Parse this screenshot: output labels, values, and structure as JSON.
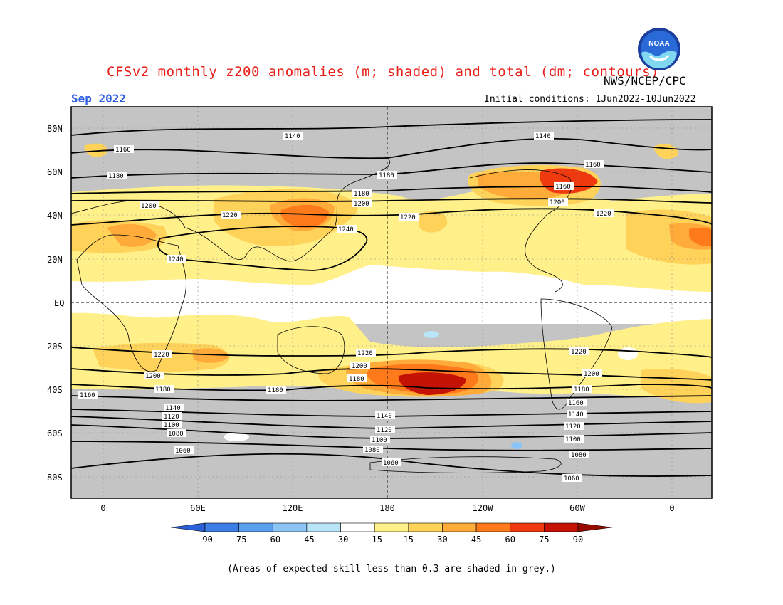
{
  "header": {
    "title": "CFSv2 monthly z200 anomalies (m; shaded) and total (dm; contours)",
    "org": "NWS/NCEP/CPC",
    "month": "Sep 2022",
    "initial_conditions": "Initial conditions: 1Jun2022-10Jun2022",
    "logo_text": "NOAA"
  },
  "footer_note": "(Areas of expected skill less than 0.3 are shaded in grey.)",
  "axes": {
    "lat_labels": [
      "80N",
      "60N",
      "40N",
      "20N",
      "EQ",
      "20S",
      "40S",
      "60S",
      "80S"
    ],
    "lon_labels": [
      "0",
      "60E",
      "120E",
      "180",
      "120W",
      "60W",
      "0"
    ]
  },
  "colorbar": {
    "ticks": [
      "-90",
      "-75",
      "-60",
      "-45",
      "-30",
      "-15",
      "15",
      "30",
      "45",
      "60",
      "75",
      "90"
    ],
    "colors": [
      "#2a5fd8",
      "#3a7ee6",
      "#5aa0ef",
      "#8cc4f5",
      "#b8e6f8",
      "#ffffff",
      "#fff08a",
      "#ffd35a",
      "#ffab3a",
      "#ff7a1a",
      "#ef3a10",
      "#c41205",
      "#960a00"
    ]
  },
  "anomaly_colors": {
    "grey": "#c4c4c4",
    "c15": "#fff08a",
    "c30": "#ffd35a",
    "c45": "#ffab3a",
    "c60": "#ff7a1a",
    "c75": "#ef3a10",
    "c90": "#c41205",
    "neg15": "#b8e6f8",
    "neg30": "#8cc4f5"
  },
  "contour_labels": [
    "1140",
    "1160",
    "1180",
    "1200",
    "1220",
    "1240",
    "1220",
    "1200",
    "1180",
    "1160",
    "1140",
    "1120",
    "1100",
    "1080",
    "1060"
  ]
}
